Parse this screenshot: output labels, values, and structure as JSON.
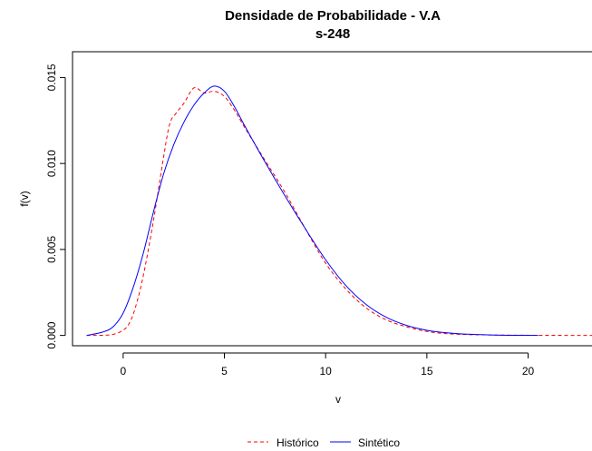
{
  "chart_data": {
    "type": "line",
    "title": "Densidade de Probabilidade - V.A",
    "subtitle": "s-248",
    "xlabel": "v",
    "ylabel": "f(v)",
    "xlim": [
      -2.5,
      23.2
    ],
    "ylim": [
      -0.0006,
      0.0165
    ],
    "xticks": [
      0,
      5,
      10,
      15,
      20
    ],
    "yticks": [
      0.0,
      0.005,
      0.01,
      0.015
    ],
    "xtick_labels": [
      "0",
      "5",
      "10",
      "15",
      "20"
    ],
    "ytick_labels": [
      "0.000",
      "0.005",
      "0.010",
      "0.015"
    ],
    "grid": false,
    "legend_position": "bottom",
    "series": [
      {
        "name": "Histórico",
        "color": "#ff0000",
        "style": "dashed",
        "x": [
          -1.8,
          -1.0,
          -0.5,
          0.0,
          0.3,
          0.6,
          1.0,
          1.5,
          2.0,
          2.3,
          2.6,
          3.0,
          3.5,
          4.0,
          4.5,
          5.0,
          5.5,
          6.0,
          7.0,
          8.0,
          9.0,
          10.0,
          11.0,
          12.0,
          13.0,
          14.0,
          15.0,
          16.0,
          17.0,
          18.0,
          20.0,
          23.2
        ],
        "y": [
          0.0,
          1e-05,
          6e-05,
          0.0003,
          0.0007,
          0.0016,
          0.0035,
          0.0067,
          0.0104,
          0.0123,
          0.0129,
          0.0135,
          0.0144,
          0.0141,
          0.0142,
          0.0139,
          0.0131,
          0.0121,
          0.0102,
          0.0083,
          0.0062,
          0.0042,
          0.0027,
          0.0016,
          0.0009,
          0.0005,
          0.00023,
          0.0001,
          5e-05,
          3e-05,
          1e-05,
          0.0
        ]
      },
      {
        "name": "Sintético",
        "color": "#0000ff",
        "style": "solid",
        "x": [
          -1.8,
          -1.0,
          -0.5,
          0.0,
          0.5,
          1.0,
          1.5,
          2.0,
          2.5,
          3.0,
          3.5,
          4.0,
          4.5,
          5.0,
          5.5,
          6.0,
          7.0,
          8.0,
          9.0,
          10.0,
          11.0,
          12.0,
          13.0,
          14.0,
          15.0,
          16.0,
          17.0,
          18.0,
          19.0,
          20.5
        ],
        "y": [
          0.0,
          0.0002,
          0.0005,
          0.0013,
          0.0028,
          0.0048,
          0.0072,
          0.0094,
          0.0111,
          0.0124,
          0.0134,
          0.0141,
          0.0145,
          0.0142,
          0.0133,
          0.0122,
          0.0101,
          0.0081,
          0.0062,
          0.0044,
          0.0029,
          0.0018,
          0.00105,
          0.00058,
          0.0003,
          0.00015,
          7e-05,
          3e-05,
          1e-05,
          0.0
        ]
      }
    ]
  }
}
